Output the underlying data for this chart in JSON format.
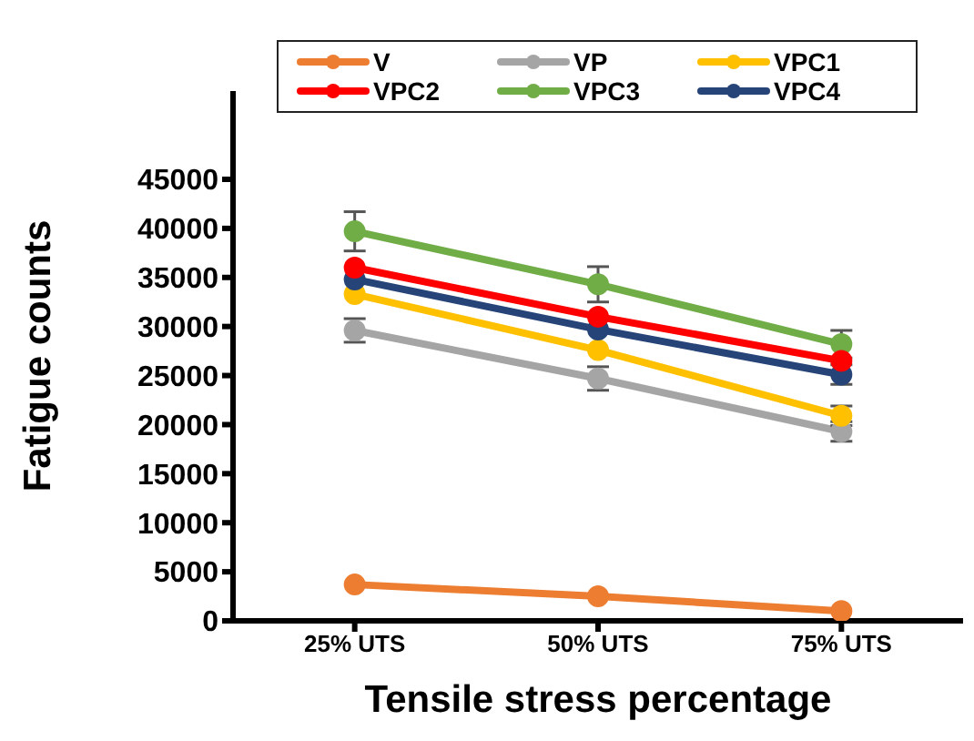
{
  "chart_data": {
    "type": "line",
    "xlabel": "Tensile stress percentage",
    "ylabel": "Fatigue counts",
    "categories": [
      "25% UTS",
      "50% UTS",
      "75% UTS"
    ],
    "ylim": [
      0,
      54000
    ],
    "yticks": [
      0,
      5000,
      10000,
      15000,
      20000,
      25000,
      30000,
      35000,
      40000,
      45000
    ],
    "grid": false,
    "legend": "top",
    "marker": "circle",
    "line_style": "solid",
    "series": [
      {
        "name": "V",
        "color": "#ed7d31",
        "values": [
          3700,
          2500,
          1000
        ]
      },
      {
        "name": "VP",
        "color": "#a5a5a5",
        "values": [
          29600,
          24700,
          19300
        ],
        "errors": [
          1200,
          1200,
          1000
        ]
      },
      {
        "name": "VPC1",
        "color": "#ffc000",
        "values": [
          33300,
          27600,
          20900
        ],
        "errors": [
          null,
          null,
          1000
        ]
      },
      {
        "name": "VPC2",
        "color": "#ff0000",
        "values": [
          36000,
          31000,
          26500
        ]
      },
      {
        "name": "VPC3",
        "color": "#70ad47",
        "values": [
          39700,
          34300,
          28200
        ],
        "errors": [
          2000,
          1800,
          1400
        ]
      },
      {
        "name": "VPC4",
        "color": "#264478",
        "values": [
          34800,
          29700,
          25100
        ],
        "errors": [
          null,
          null,
          1000
        ]
      }
    ]
  }
}
